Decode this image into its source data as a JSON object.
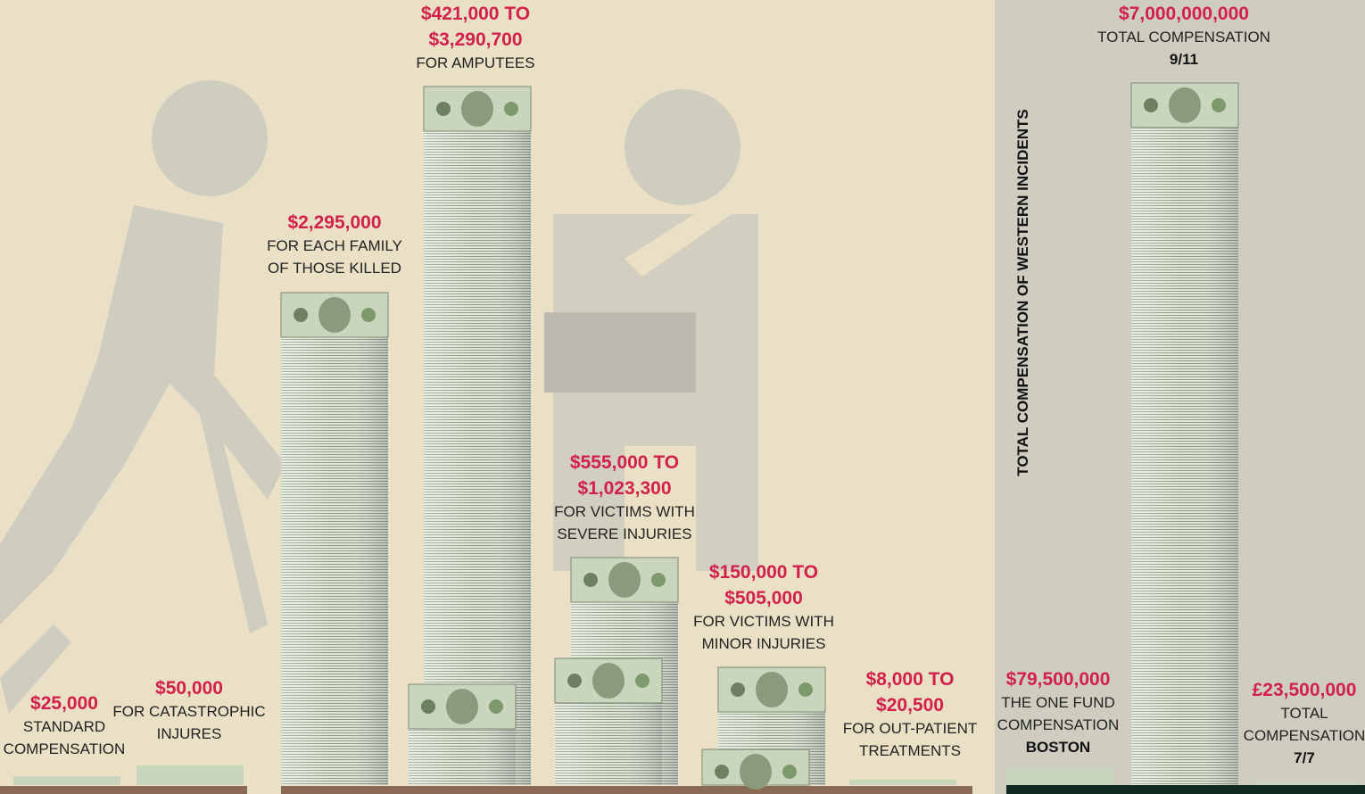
{
  "left_items": [
    {
      "amount": [
        "$25,000"
      ],
      "description": [
        "STANDARD",
        "COMPENSATION"
      ]
    },
    {
      "amount": [
        "$50,000"
      ],
      "description": [
        "FOR CATASTROPHIC",
        "INJURES"
      ]
    },
    {
      "amount": [
        "$2,295,000"
      ],
      "description": [
        "FOR EACH FAMILY",
        "OF THOSE KILLED"
      ]
    },
    {
      "amount": [
        "$421,000 TO",
        "$3,290,700"
      ],
      "description": [
        "FOR AMPUTEES"
      ]
    },
    {
      "amount": [
        "$555,000 TO",
        "$1,023,300"
      ],
      "description": [
        "FOR VICTIMS WITH",
        "SEVERE INJURIES"
      ]
    },
    {
      "amount": [
        "$150,000 TO",
        "$505,000"
      ],
      "description": [
        "FOR VICTIMS WITH",
        "MINOR INJURIES"
      ]
    },
    {
      "amount": [
        "$8,000 TO",
        "$20,500"
      ],
      "description": [
        "FOR OUT-PATIENT",
        "TREATMENTS"
      ]
    }
  ],
  "right_title": "TOTAL COMPENSATION OF WESTERN INCIDENTS",
  "right_items": [
    {
      "amount": [
        "$79,500,000"
      ],
      "description": [
        "THE ONE FUND",
        "COMPENSATION"
      ],
      "label": "BOSTON"
    },
    {
      "amount": [
        "$7,000,000,000"
      ],
      "description": [
        "TOTAL COMPENSATION"
      ],
      "label": "9/11"
    },
    {
      "amount": [
        "£23,500,000"
      ],
      "description": [
        "TOTAL",
        "COMPENSATION"
      ],
      "label": "7/7"
    }
  ]
}
